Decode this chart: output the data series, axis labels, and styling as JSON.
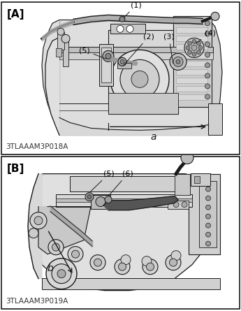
{
  "fig_width": 3.45,
  "fig_height": 4.45,
  "dpi": 100,
  "bg_color": "#ffffff",
  "panel_A": {
    "label": "[A]",
    "code": "3TLAAAM3P018A",
    "ann_fontsize": 8,
    "label_fontsize": 11,
    "code_fontsize": 7.5
  },
  "panel_B": {
    "label": "[B]",
    "code": "3TLAAAM3P019A",
    "ann_fontsize": 8,
    "label_fontsize": 11,
    "code_fontsize": 7.5
  }
}
